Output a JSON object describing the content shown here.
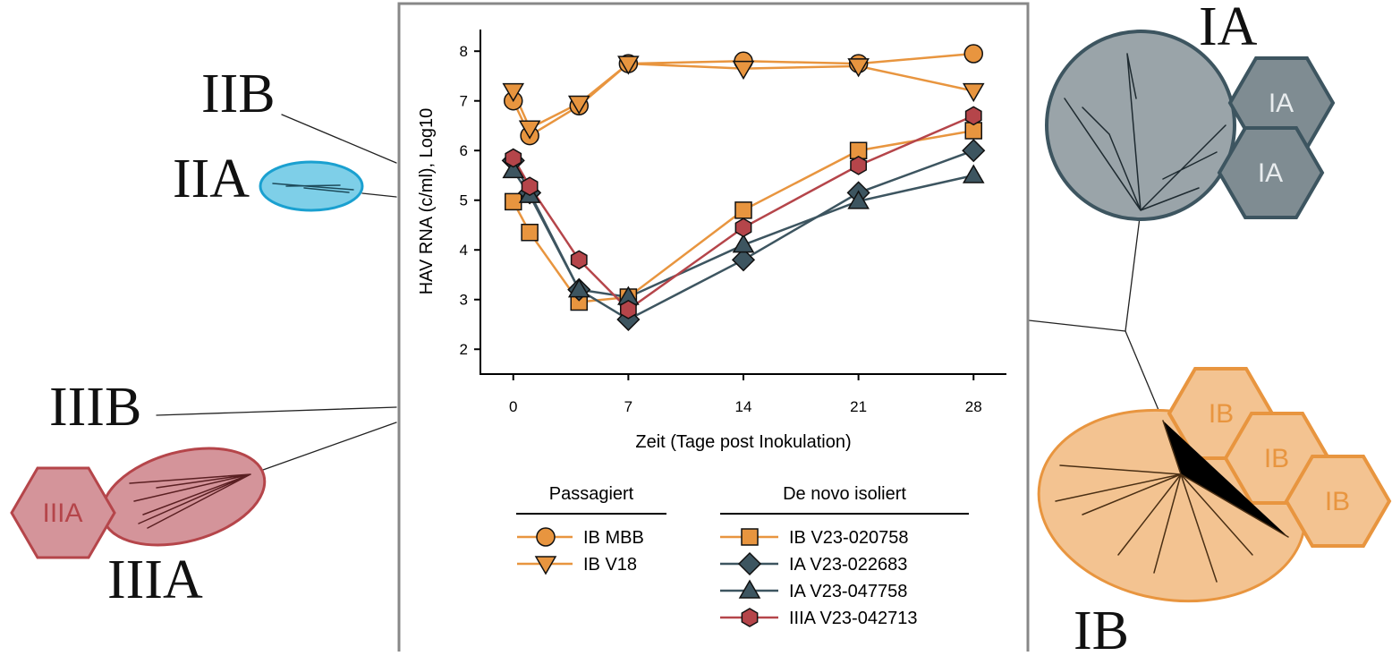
{
  "chart_data": {
    "type": "line",
    "y_label": "HAV RNA (c/ml), Log10",
    "x_label": "Zeit (Tage post Inokulation)",
    "x": [
      0,
      1,
      4,
      7,
      14,
      21,
      28
    ],
    "xlim": [
      -2,
      30
    ],
    "xticks": [
      0,
      7,
      14,
      21,
      28
    ],
    "ylim": [
      1.5,
      8.4
    ],
    "yticks": [
      2,
      3,
      4,
      5,
      6,
      7,
      8
    ],
    "series": [
      {
        "name": "IB MBB",
        "group": "Passagiert",
        "marker": "circle",
        "color": "#e8953f",
        "values": [
          7.0,
          6.3,
          6.9,
          7.75,
          7.8,
          7.75,
          7.95
        ]
      },
      {
        "name": "IB V18",
        "group": "Passagiert",
        "marker": "triangle-down",
        "color": "#e8953f",
        "values": [
          7.2,
          6.45,
          6.95,
          7.75,
          7.65,
          7.7,
          7.2
        ]
      },
      {
        "name": "IB V23-020758",
        "group": "De novo isoliert",
        "marker": "square",
        "color": "#e8953f",
        "values": [
          4.97,
          4.35,
          2.95,
          3.05,
          4.8,
          6.0,
          6.4
        ]
      },
      {
        "name": "IA V23-022683",
        "group": "De novo isoliert",
        "marker": "diamond",
        "color": "#3d5560",
        "values": [
          5.8,
          5.15,
          3.2,
          2.6,
          3.8,
          5.15,
          6.0
        ]
      },
      {
        "name": "IA V23-047758",
        "group": "De novo isoliert",
        "marker": "triangle-up",
        "color": "#3d5560",
        "values": [
          5.6,
          5.1,
          3.2,
          3.05,
          4.1,
          4.98,
          5.5
        ]
      },
      {
        "name": "IIIA V23-042713",
        "group": "De novo isoliert",
        "marker": "hexagon",
        "color": "#b5454a",
        "values": [
          5.85,
          5.28,
          3.8,
          2.8,
          4.45,
          5.7,
          6.7
        ]
      }
    ]
  },
  "clade_labels": {
    "IA": "IA",
    "IB": "IB",
    "IIA": "IIA",
    "IIB": "IIB",
    "IIIA": "IIIA",
    "IIIB": "IIIB"
  },
  "hexagon_labels": [
    "IA",
    "IA",
    "IB",
    "IB",
    "IB",
    "IIIA"
  ]
}
